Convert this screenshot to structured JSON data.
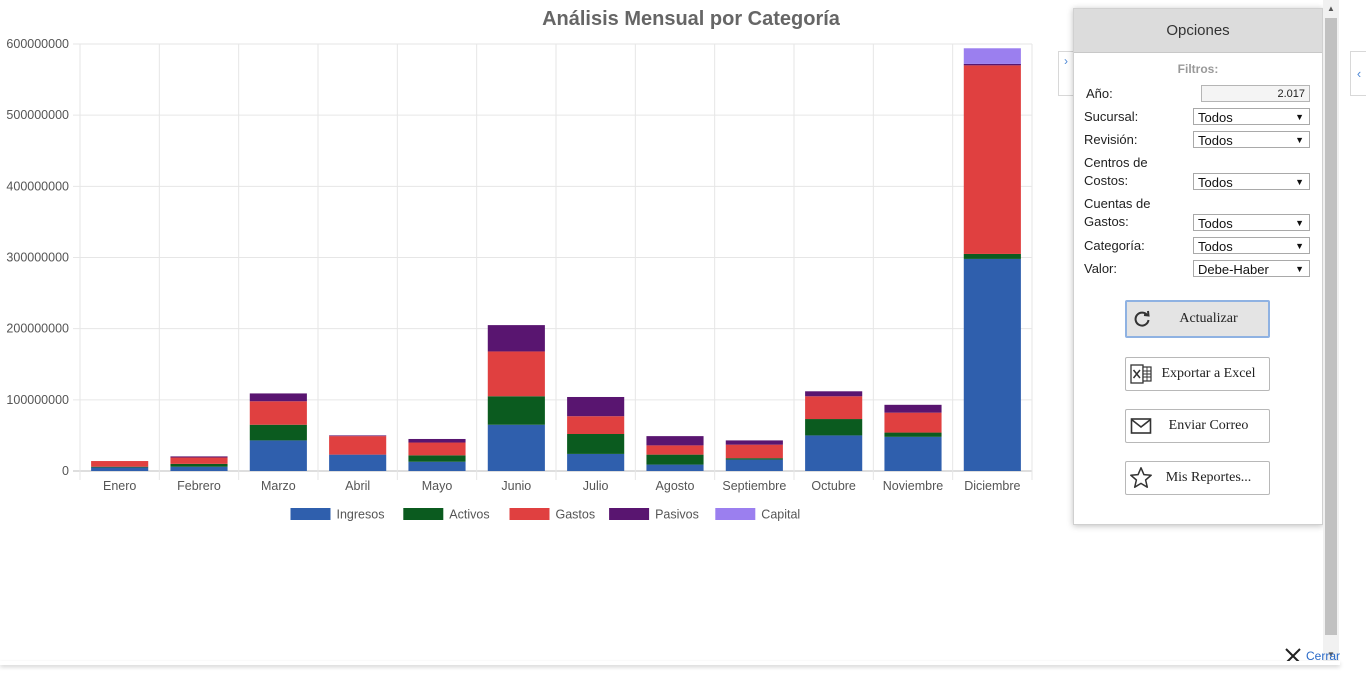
{
  "chart_data": {
    "type": "bar",
    "stacked": true,
    "title": "Análisis Mensual por Categoría",
    "xlabel": "",
    "ylabel": "",
    "categories": [
      "Enero",
      "Febrero",
      "Marzo",
      "Abril",
      "Mayo",
      "Junio",
      "Julio",
      "Agosto",
      "Septiembre",
      "Octubre",
      "Noviembre",
      "Diciembre"
    ],
    "yticks": [
      "0",
      "100000000",
      "200000000",
      "300000000",
      "400000000",
      "500000000",
      "600000000"
    ],
    "ylim": [
      0,
      600000000
    ],
    "grid": true,
    "legend_position": "bottom",
    "series": [
      {
        "name": "Ingresos",
        "color": "#2f5fad",
        "values": [
          5000000,
          6000000,
          43000000,
          23000000,
          13000000,
          65000000,
          24000000,
          9000000,
          16000000,
          50000000,
          48000000,
          298000000
        ]
      },
      {
        "name": "Activos",
        "color": "#0b5b1f",
        "values": [
          1000000,
          4000000,
          22000000,
          0,
          9000000,
          40000000,
          28000000,
          14000000,
          2000000,
          23000000,
          6000000,
          7000000
        ]
      },
      {
        "name": "Gastos",
        "color": "#e04040",
        "values": [
          8000000,
          9000000,
          33000000,
          26000000,
          18000000,
          63000000,
          25000000,
          13000000,
          19000000,
          32000000,
          28000000,
          265000000
        ]
      },
      {
        "name": "Pasivos",
        "color": "#591570",
        "values": [
          0,
          1500000,
          11000000,
          1000000,
          5000000,
          37000000,
          27000000,
          13000000,
          6000000,
          7000000,
          11000000,
          2000000
        ]
      },
      {
        "name": "Capital",
        "color": "#9b7fef",
        "values": [
          0,
          0,
          0,
          0,
          0,
          0,
          0,
          0,
          0,
          0,
          0,
          22000000
        ]
      }
    ]
  },
  "options_panel": {
    "title": "Opciones",
    "filters_heading": "Filtros:",
    "year": {
      "label": "Año:",
      "value": "2.017"
    },
    "filters": [
      {
        "label": "Sucursal:",
        "value": "Todos"
      },
      {
        "label": "Revisión:",
        "value": "Todos"
      },
      {
        "label_line1": "Centros de",
        "label_line2": "Costos:",
        "value": "Todos"
      },
      {
        "label_line1": "Cuentas de",
        "label_line2": "Gastos:",
        "value": "Todos"
      },
      {
        "label": "Categoría:",
        "value": "Todos"
      },
      {
        "label": "Valor:",
        "value": "Debe-Haber"
      }
    ],
    "buttons": {
      "refresh": "Actualizar",
      "export": "Exportar a Excel",
      "email": "Enviar Correo",
      "reports": "Mis Reportes..."
    },
    "icons": {
      "refresh": "refresh-icon",
      "export": "excel-icon",
      "email": "envelope-icon",
      "reports": "star-icon"
    }
  },
  "close": {
    "label": "Cerrar",
    "icon": "close-icon"
  }
}
